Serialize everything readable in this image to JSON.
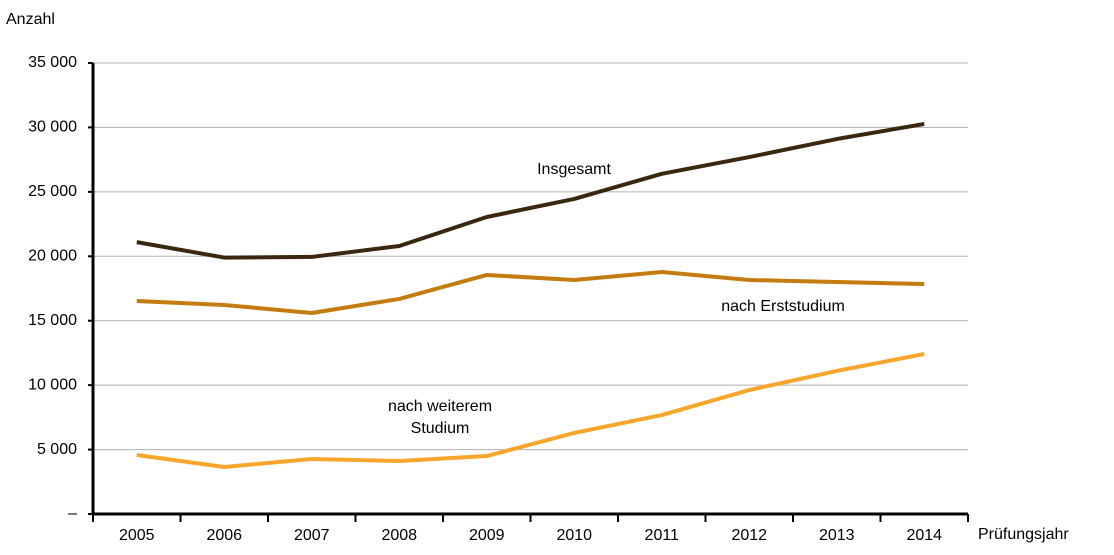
{
  "chart_data": {
    "type": "line",
    "y_label": "Anzahl",
    "x_label": "Prüfungsjahr",
    "categories": [
      "2005",
      "2006",
      "2007",
      "2008",
      "2009",
      "2010",
      "2011",
      "2012",
      "2013",
      "2014"
    ],
    "series": [
      {
        "name": "Insgesamt",
        "color": "#3b2710",
        "values": [
          21100,
          19900,
          19950,
          20800,
          23050,
          24450,
          26400,
          27700,
          29100,
          30270
        ]
      },
      {
        "name": "nach Erststudium",
        "color": "#c47c10",
        "values": [
          16530,
          16220,
          15600,
          16690,
          18550,
          18160,
          18780,
          18160,
          18000,
          17850
        ]
      },
      {
        "name": "nach weiterem Studium",
        "color": "#f7a62b",
        "values": [
          4580,
          3650,
          4270,
          4110,
          4500,
          6290,
          7680,
          9620,
          11100,
          12420
        ]
      }
    ],
    "ylim": [
      0,
      35000
    ],
    "yticks": [
      {
        "value": 0,
        "label": "–"
      },
      {
        "value": 5000,
        "label": "5 000"
      },
      {
        "value": 10000,
        "label": "10 000"
      },
      {
        "value": 15000,
        "label": "15 000"
      },
      {
        "value": 20000,
        "label": "20 000"
      },
      {
        "value": 25000,
        "label": "25 000"
      },
      {
        "value": 30000,
        "label": "30 000"
      },
      {
        "value": 35000,
        "label": "35 000"
      }
    ],
    "grid": true
  }
}
